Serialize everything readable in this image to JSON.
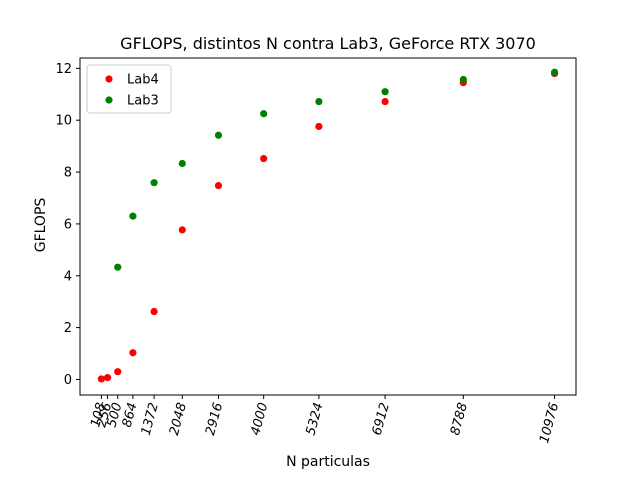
{
  "chart_data": {
    "type": "scatter",
    "title": "GFLOPS, distintos N contra Lab3, GeForce RTX 3070",
    "xlabel": "N particulas",
    "ylabel": "GFLOPS",
    "x_ticks": [
      108,
      256,
      500,
      864,
      1372,
      2048,
      2916,
      4000,
      5324,
      6912,
      8788,
      10976
    ],
    "x_tick_labels": [
      "108",
      "256",
      "500",
      "864",
      "1372",
      "2048",
      "2916",
      "4000",
      "5324",
      "6912",
      "8788",
      "10976"
    ],
    "y_ticks": [
      0,
      2,
      4,
      6,
      8,
      10,
      12
    ],
    "y_tick_labels": [
      "0",
      "2",
      "4",
      "6",
      "8",
      "10",
      "12"
    ],
    "xlim": [
      -405,
      11490
    ],
    "ylim": [
      -0.6,
      12.4
    ],
    "legend_position": "top-left",
    "grid": false,
    "series": [
      {
        "name": "Lab4",
        "color": "#ff0000",
        "x": [
          108,
          256,
          500,
          864,
          1372,
          2048,
          2916,
          4000,
          5324,
          6912,
          8788,
          10976
        ],
        "y": [
          0.02,
          0.07,
          0.3,
          1.03,
          2.62,
          5.77,
          7.48,
          8.52,
          9.76,
          10.72,
          11.45,
          11.8
        ]
      },
      {
        "name": "Lab3",
        "color": "#008000",
        "x": [
          500,
          864,
          1372,
          2048,
          2916,
          4000,
          5324,
          6912,
          8788,
          10976
        ],
        "y": [
          4.33,
          6.3,
          7.59,
          8.33,
          9.42,
          10.25,
          10.72,
          11.1,
          11.57,
          11.85
        ]
      }
    ]
  }
}
